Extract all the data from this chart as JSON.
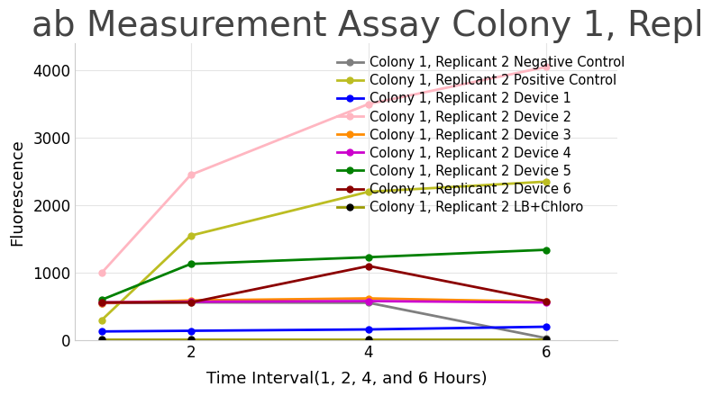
{
  "title": "ab Measurement Assay Colony 1, Repl",
  "xlabel": "Time Interval(1, 2, 4, and 6 Hours)",
  "ylabel": "Fluorescence",
  "x": [
    1,
    2,
    4,
    6
  ],
  "series": [
    {
      "label": "Colony 1, Replicant 2 Negative Control",
      "y": [
        550,
        560,
        555,
        30
      ],
      "color": "#7f7f7f",
      "linewidth": 2
    },
    {
      "label": "Colony 1, Replicant 2 Positive Control",
      "y": [
        300,
        1550,
        2200,
        2350
      ],
      "color": "#bcbd22",
      "linewidth": 2
    },
    {
      "label": "Colony 1, Replicant 2 Device 1",
      "y": [
        130,
        140,
        160,
        200
      ],
      "color": "#0000ff",
      "linewidth": 2
    },
    {
      "label": "Colony 1, Replicant 2 Device 2",
      "y": [
        1000,
        2450,
        3500,
        4050
      ],
      "color": "#ffb6c1",
      "linewidth": 2
    },
    {
      "label": "Colony 1, Replicant 2 Device 3",
      "y": [
        550,
        590,
        620,
        570
      ],
      "color": "#ff8c00",
      "linewidth": 2
    },
    {
      "label": "Colony 1, Replicant 2 Device 4",
      "y": [
        560,
        570,
        580,
        560
      ],
      "color": "#cc00cc",
      "linewidth": 2
    },
    {
      "label": "Colony 1, Replicant 2 Device 5",
      "y": [
        600,
        1130,
        1230,
        1340
      ],
      "color": "#008000",
      "linewidth": 2
    },
    {
      "label": "Colony 1, Replicant 2 Device 6",
      "y": [
        560,
        560,
        1100,
        580
      ],
      "color": "#8b0000",
      "linewidth": 2
    },
    {
      "label": "Colony 1, Replicant 2 LB+Chloro",
      "y": [
        20,
        20,
        20,
        20
      ],
      "color": "#999900",
      "linewidth": 2,
      "black_marker": true
    }
  ],
  "ylim": [
    0,
    4400
  ],
  "xlim": [
    0.7,
    6.8
  ],
  "yticks": [
    0,
    1000,
    2000,
    3000,
    4000
  ],
  "xticks": [
    2,
    4,
    6
  ],
  "background_color": "#ffffff",
  "grid_color": "#e5e5e5",
  "title_fontsize": 28,
  "axis_label_fontsize": 13,
  "tick_fontsize": 12,
  "legend_fontsize": 10.5
}
